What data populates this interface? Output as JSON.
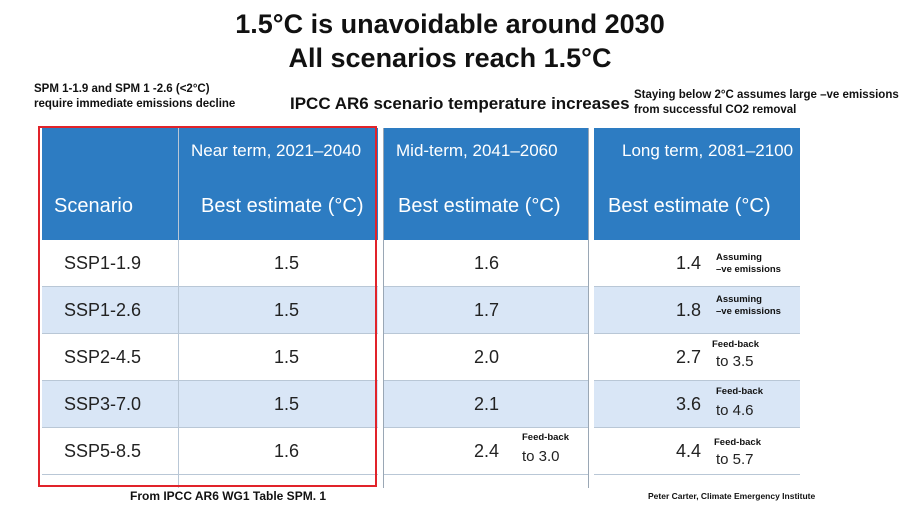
{
  "title": {
    "line1": "1.5°C is unavoidable around 2030",
    "line2": "All scenarios reach 1.5°C"
  },
  "notes": {
    "left_line1": "SPM 1-1.9 and SPM 1 -2.6 (<2°C)",
    "left_line2": "require immediate emissions decline",
    "right_line1": "Staying below 2°C assumes large –ve emissions",
    "right_line2": "from successful CO2 removal"
  },
  "subtitle": "IPCC AR6 scenario temperature increases",
  "footer": {
    "source": "From IPCC AR6 WG1 Table SPM. 1",
    "credit": "Peter Carter, Climate Emergency Institute"
  },
  "near_term": {
    "header": "Near term, 2021–2040",
    "col_scenario": "Scenario",
    "col_estimate": "Best estimate (°C)",
    "rows": [
      {
        "scenario": "SSP1-1.9",
        "value": "1.5"
      },
      {
        "scenario": "SSP1-2.6",
        "value": "1.5"
      },
      {
        "scenario": "SSP2-4.5",
        "value": "1.5"
      },
      {
        "scenario": "SSP3-7.0",
        "value": "1.5"
      },
      {
        "scenario": "SSP5-8.5",
        "value": "1.6"
      }
    ]
  },
  "mid_term": {
    "header": "Mid-term, 2041–2060",
    "col_estimate": "Best estimate (°C)",
    "rows": [
      {
        "value": "1.6"
      },
      {
        "value": "1.7"
      },
      {
        "value": "2.0"
      },
      {
        "value": "2.1"
      },
      {
        "value": "2.4",
        "note": "Feed-back",
        "to": "to 3.0"
      }
    ]
  },
  "long_term": {
    "header": "Long term, 2081–2100",
    "col_estimate": "Best estimate (°C)",
    "rows": [
      {
        "value": "1.4",
        "note1": "Assuming",
        "note2": "–ve emissions"
      },
      {
        "value": "1.8",
        "note1": "Assuming",
        "note2": "–ve emissions"
      },
      {
        "value": "2.7",
        "note": "Feed-back",
        "to": "to 3.5"
      },
      {
        "value": "3.6",
        "note": "Feed-back",
        "to": "to 4.6"
      },
      {
        "value": "4.4",
        "note": "Feed-back",
        "to": "to 5.7"
      }
    ]
  }
}
